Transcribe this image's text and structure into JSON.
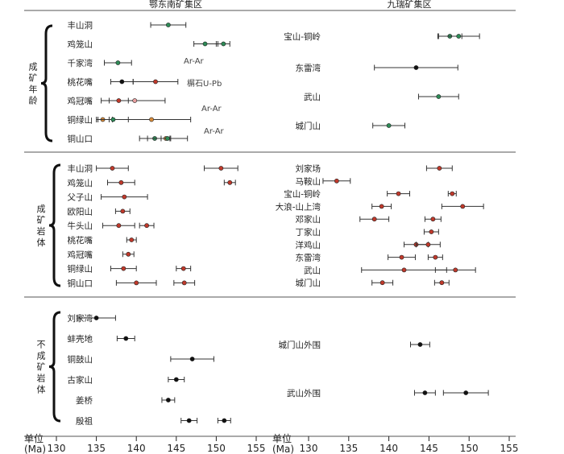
{
  "colors": {
    "red": "#c0392b",
    "green": "#2e8b57",
    "orange": "#d98c3a",
    "black": "#111111",
    "pink": "#e8a0a0"
  },
  "chart_data": {
    "type": "scatter",
    "subtype": "age ranges with error bars",
    "panels": [
      {
        "id": "left",
        "header": "鄂东南矿集区",
        "xlabel": "单位",
        "unit": "(Ma)",
        "xlim": [
          130,
          155
        ],
        "ticks": [
          130,
          135,
          140,
          145,
          150,
          155
        ]
      },
      {
        "id": "right",
        "header": "九瑞矿集区",
        "xlabel": "单位",
        "unit": "(Ma)",
        "xlim": [
          130,
          155
        ],
        "ticks": [
          130,
          135,
          140,
          145,
          150,
          155
        ]
      }
    ],
    "sections": [
      {
        "group": "成矿年龄",
        "left": {
          "rows": [
            {
              "name": "丰山洞",
              "points": [
                {
                  "v": 144.0,
                  "lo": 141.8,
                  "hi": 146.2,
                  "c": "green"
                }
              ]
            },
            {
              "name": "鸡笼山",
              "points": [
                {
                  "v": 148.6,
                  "lo": 147.2,
                  "hi": 150.2,
                  "c": "green"
                },
                {
                  "v": 150.9,
                  "lo": 150.0,
                  "hi": 151.7,
                  "c": "green"
                }
              ]
            },
            {
              "name": "千家湾",
              "points": [
                {
                  "v": 137.7,
                  "lo": 136.0,
                  "hi": 139.4,
                  "c": "green"
                }
              ]
            },
            {
              "name": "桃花嘴",
              "points": [
                {
                  "v": 142.4,
                  "lo": 139.6,
                  "hi": 145.2,
                  "c": "red"
                },
                {
                  "v": 138.2,
                  "lo": 136.8,
                  "hi": 139.6,
                  "c": "black"
                }
              ]
            },
            {
              "name": "鸡冠嘴",
              "points": [
                {
                  "v": 139.8,
                  "lo": 135.6,
                  "hi": 143.6,
                  "c": "pink"
                },
                {
                  "v": 137.8,
                  "lo": 136.6,
                  "hi": 139.0,
                  "c": "red"
                }
              ]
            },
            {
              "name": "铜绿山",
              "points": [
                {
                  "v": 135.8,
                  "lo": 135.0,
                  "hi": 136.6,
                  "c": "orange"
                },
                {
                  "v": 141.9,
                  "lo": 137.0,
                  "hi": 146.8,
                  "c": "orange"
                },
                {
                  "v": 137.1,
                  "lo": 135.2,
                  "hi": 139.0,
                  "c": "green"
                }
              ]
            },
            {
              "name": "铜山口",
              "points": [
                {
                  "v": 143.7,
                  "lo": 143.1,
                  "hi": 144.3,
                  "c": "orange"
                },
                {
                  "v": 142.3,
                  "lo": 140.4,
                  "hi": 144.2,
                  "c": "green"
                },
                {
                  "v": 143.9,
                  "lo": 141.4,
                  "hi": 146.4,
                  "c": "green"
                }
              ]
            }
          ],
          "annotations": [
            "Ar-Ar",
            "榍石U-Pb",
            "Ar-Ar",
            "Ar-Ar"
          ]
        },
        "right": {
          "rows": [
            {
              "name": "宝山-铜岭",
              "points": [
                {
                  "v": 147.6,
                  "lo": 146.1,
                  "hi": 149.1,
                  "c": "green"
                },
                {
                  "v": 148.7,
                  "lo": 146.2,
                  "hi": 151.3,
                  "c": "green"
                }
              ]
            },
            {
              "name": "东雷湾",
              "points": [
                {
                  "v": 143.4,
                  "lo": 138.2,
                  "hi": 148.6,
                  "c": "black"
                }
              ]
            },
            {
              "name": "武山",
              "points": [
                {
                  "v": 146.2,
                  "lo": 143.7,
                  "hi": 148.7,
                  "c": "green"
                }
              ]
            },
            {
              "name": "城门山",
              "points": [
                {
                  "v": 140.0,
                  "lo": 138.0,
                  "hi": 142.0,
                  "c": "green"
                }
              ]
            }
          ]
        }
      },
      {
        "group": "成矿岩体",
        "left": {
          "rows": [
            {
              "name": "丰山洞",
              "points": [
                {
                  "v": 137.0,
                  "lo": 135.0,
                  "hi": 139.0,
                  "c": "red"
                },
                {
                  "v": 150.6,
                  "lo": 148.5,
                  "hi": 152.7,
                  "c": "red"
                }
              ]
            },
            {
              "name": "鸡笼山",
              "points": [
                {
                  "v": 138.1,
                  "lo": 136.4,
                  "hi": 139.8,
                  "c": "red"
                },
                {
                  "v": 151.7,
                  "lo": 151.0,
                  "hi": 152.4,
                  "c": "red"
                }
              ]
            },
            {
              "name": "父子山",
              "points": [
                {
                  "v": 138.5,
                  "lo": 135.6,
                  "hi": 141.4,
                  "c": "red"
                }
              ]
            },
            {
              "name": "欧阳山",
              "points": [
                {
                  "v": 138.3,
                  "lo": 137.4,
                  "hi": 139.2,
                  "c": "red"
                }
              ]
            },
            {
              "name": "牛头山",
              "points": [
                {
                  "v": 137.8,
                  "lo": 135.8,
                  "hi": 139.8,
                  "c": "red"
                },
                {
                  "v": 141.3,
                  "lo": 140.4,
                  "hi": 142.2,
                  "c": "red"
                }
              ]
            },
            {
              "name": "桃花嘴",
              "points": [
                {
                  "v": 139.4,
                  "lo": 138.8,
                  "hi": 140.0,
                  "c": "red"
                }
              ]
            },
            {
              "name": "鸡冠嘴",
              "points": [
                {
                  "v": 139.0,
                  "lo": 138.3,
                  "hi": 139.7,
                  "c": "red"
                }
              ]
            },
            {
              "name": "铜绿山",
              "points": [
                {
                  "v": 138.4,
                  "lo": 136.8,
                  "hi": 140.0,
                  "c": "red"
                },
                {
                  "v": 145.9,
                  "lo": 145.0,
                  "hi": 146.8,
                  "c": "red"
                }
              ]
            },
            {
              "name": "铜山口",
              "points": [
                {
                  "v": 140.0,
                  "lo": 137.5,
                  "hi": 142.5,
                  "c": "red"
                },
                {
                  "v": 146.0,
                  "lo": 144.7,
                  "hi": 147.3,
                  "c": "red"
                }
              ]
            }
          ]
        },
        "right": {
          "rows": [
            {
              "name": "刘家场",
              "points": [
                {
                  "v": 146.3,
                  "lo": 144.7,
                  "hi": 147.9,
                  "c": "red"
                }
              ]
            },
            {
              "name": "马鞍山",
              "points": [
                {
                  "v": 133.5,
                  "lo": 131.8,
                  "hi": 135.2,
                  "c": "red"
                }
              ]
            },
            {
              "name": "宝山-铜岭",
              "points": [
                {
                  "v": 141.2,
                  "lo": 139.8,
                  "hi": 142.6,
                  "c": "red"
                },
                {
                  "v": 147.9,
                  "lo": 147.4,
                  "hi": 148.4,
                  "c": "red"
                }
              ]
            },
            {
              "name": "大浪-山上湾",
              "points": [
                {
                  "v": 139.1,
                  "lo": 137.9,
                  "hi": 140.3,
                  "c": "red"
                },
                {
                  "v": 149.2,
                  "lo": 146.6,
                  "hi": 151.8,
                  "c": "red"
                }
              ]
            },
            {
              "name": "邓家山",
              "points": [
                {
                  "v": 138.2,
                  "lo": 136.4,
                  "hi": 140.0,
                  "c": "red"
                },
                {
                  "v": 145.5,
                  "lo": 144.5,
                  "hi": 146.5,
                  "c": "red"
                }
              ]
            },
            {
              "name": "丁家山",
              "points": [
                {
                  "v": 145.3,
                  "lo": 144.4,
                  "hi": 146.2,
                  "c": "red"
                }
              ]
            },
            {
              "name": "洋鸡山",
              "points": [
                {
                  "v": 143.4,
                  "lo": 141.9,
                  "hi": 144.9,
                  "c": "red"
                },
                {
                  "v": 144.9,
                  "lo": 143.4,
                  "hi": 146.4,
                  "c": "red"
                }
              ]
            },
            {
              "name": "东雷湾",
              "points": [
                {
                  "v": 141.6,
                  "lo": 139.9,
                  "hi": 143.3,
                  "c": "red"
                },
                {
                  "v": 145.8,
                  "lo": 144.9,
                  "hi": 146.7,
                  "c": "red"
                }
              ]
            },
            {
              "name": "武山",
              "points": [
                {
                  "v": 141.9,
                  "lo": 136.6,
                  "hi": 147.2,
                  "c": "red"
                },
                {
                  "v": 148.3,
                  "lo": 145.8,
                  "hi": 150.8,
                  "c": "red"
                }
              ]
            },
            {
              "name": "城门山",
              "points": [
                {
                  "v": 139.2,
                  "lo": 137.9,
                  "hi": 140.5,
                  "c": "red"
                },
                {
                  "v": 146.6,
                  "lo": 145.7,
                  "hi": 147.5,
                  "c": "red"
                }
              ]
            }
          ]
        }
      },
      {
        "group": "不成矿岩体",
        "left": {
          "rows": [
            {
              "name": "刘家湾",
              "points": [
                {
                  "v": 135.0,
                  "lo": 132.6,
                  "hi": 137.4,
                  "c": "black"
                }
              ]
            },
            {
              "name": "蚌壳地",
              "points": [
                {
                  "v": 138.7,
                  "lo": 137.6,
                  "hi": 139.8,
                  "c": "black"
                }
              ]
            },
            {
              "name": "铜鼓山",
              "points": [
                {
                  "v": 147.0,
                  "lo": 144.3,
                  "hi": 149.7,
                  "c": "black"
                }
              ]
            },
            {
              "name": "古家山",
              "points": [
                {
                  "v": 145.0,
                  "lo": 144.0,
                  "hi": 146.0,
                  "c": "black"
                }
              ]
            },
            {
              "name": "姜桥",
              "points": [
                {
                  "v": 144.0,
                  "lo": 143.2,
                  "hi": 144.8,
                  "c": "black"
                }
              ]
            },
            {
              "name": "殷祖",
              "points": [
                {
                  "v": 146.6,
                  "lo": 145.6,
                  "hi": 147.6,
                  "c": "black"
                },
                {
                  "v": 151.0,
                  "lo": 150.2,
                  "hi": 151.8,
                  "c": "black"
                }
              ]
            }
          ]
        },
        "right": {
          "rows": [
            {
              "name": "城门山外围",
              "points": [
                {
                  "v": 143.9,
                  "lo": 142.7,
                  "hi": 145.1,
                  "c": "black"
                }
              ]
            },
            {
              "name": "武山外围",
              "points": [
                {
                  "v": 144.5,
                  "lo": 143.2,
                  "hi": 145.8,
                  "c": "black"
                },
                {
                  "v": 149.6,
                  "lo": 146.8,
                  "hi": 152.4,
                  "c": "black"
                }
              ]
            }
          ]
        }
      }
    ]
  }
}
